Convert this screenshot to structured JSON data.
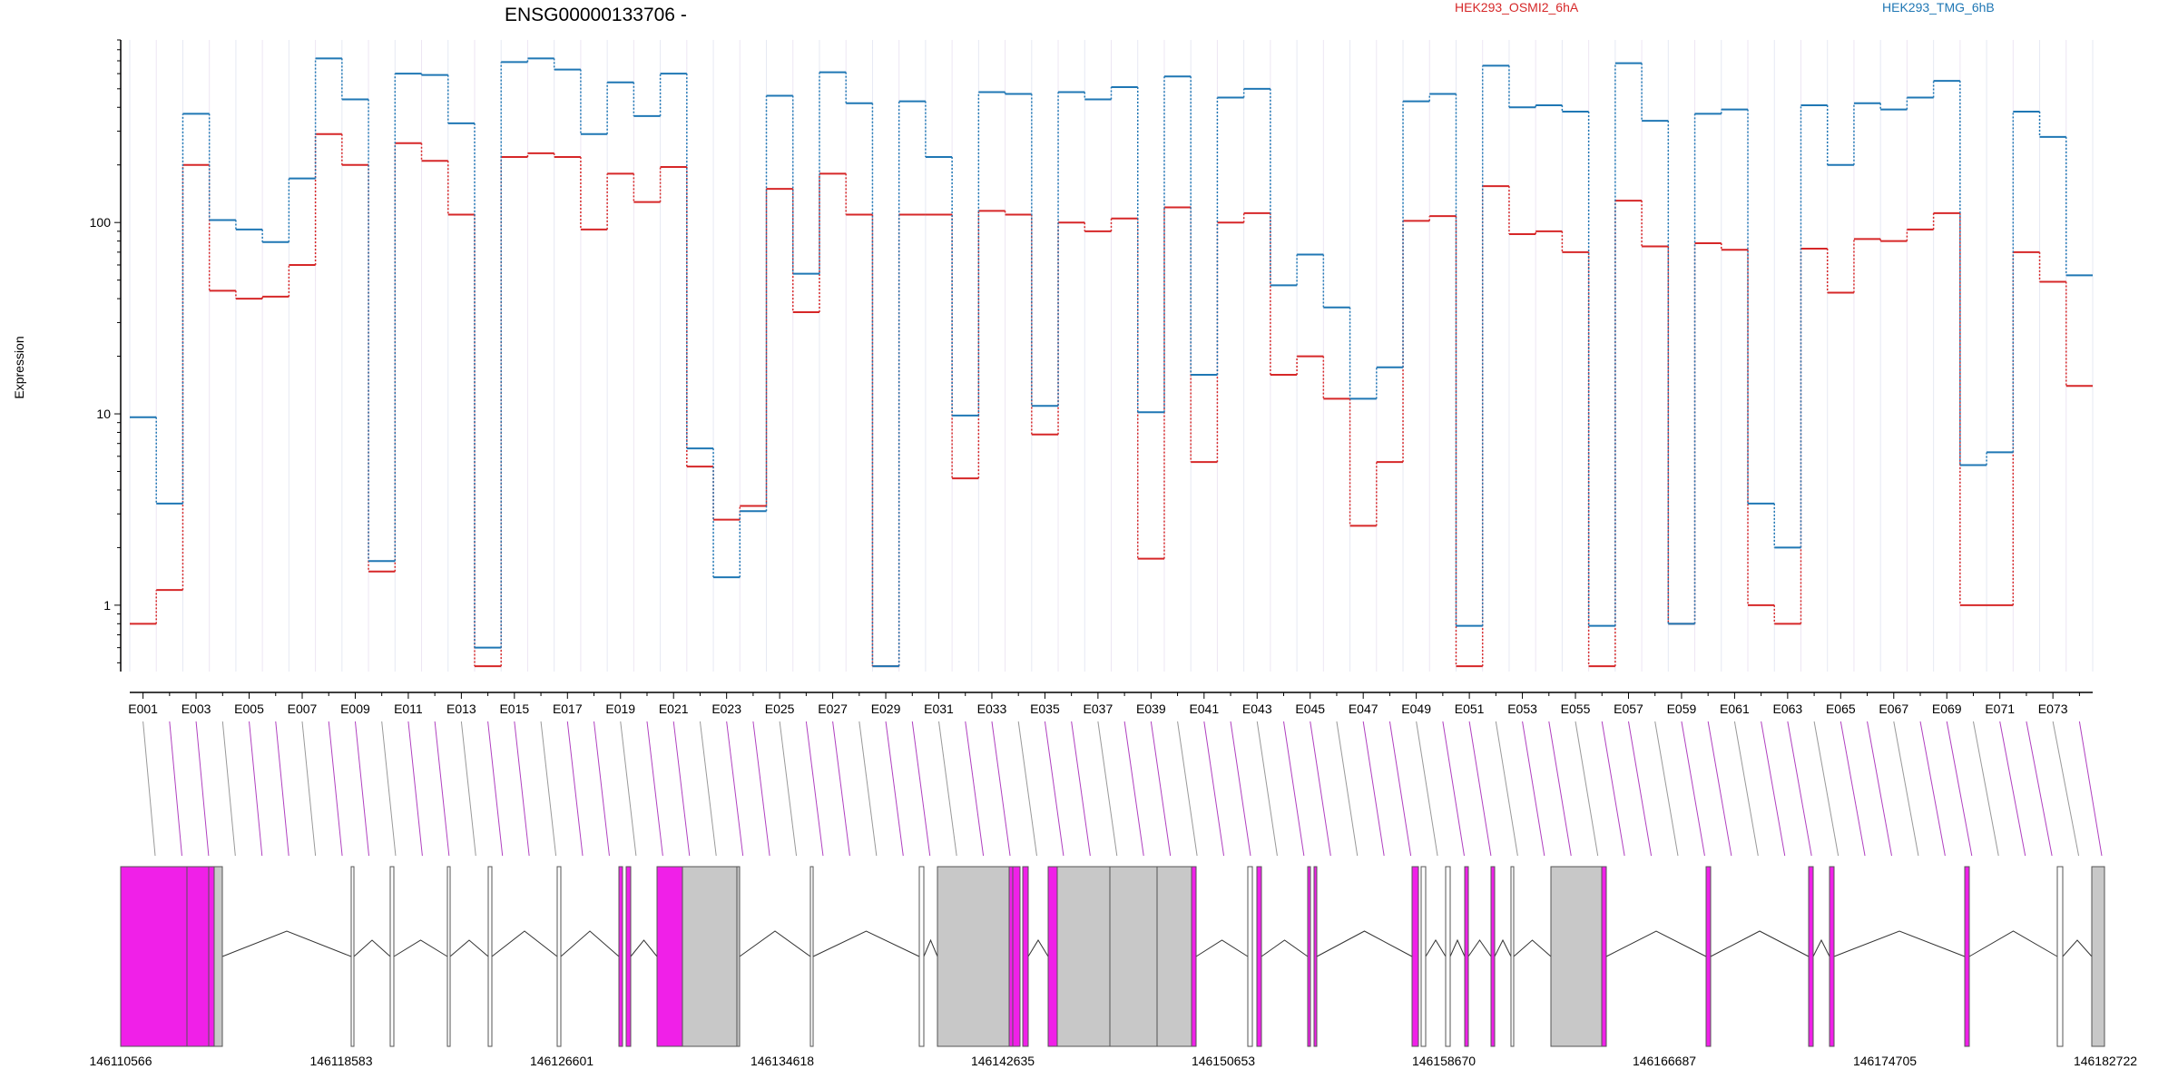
{
  "chart_data": {
    "type": "line",
    "title": "ENSG00000133706 -",
    "ylabel": "Expression",
    "xlabel": "",
    "y_scale": "log",
    "y_ticks": [
      1,
      10,
      100
    ],
    "y_tick_labels": [
      "1",
      "10",
      "100"
    ],
    "ylim": [
      0.45,
      900
    ],
    "grid": "vertical",
    "legend_position": "top-right",
    "colors": {
      "osmi2": "#d62728",
      "tmg": "#1f77b4",
      "exon": "#f020e8",
      "exon_gray": "#c8c8c8",
      "exon_stroke": "#555555",
      "connector_gray": "#999999",
      "connector_magenta": "#b040c0"
    },
    "categories": [
      "E001",
      "E002",
      "E003",
      "E004",
      "E005",
      "E006",
      "E007",
      "E008",
      "E009",
      "E010",
      "E011",
      "E012",
      "E013",
      "E014",
      "E015",
      "E016",
      "E017",
      "E018",
      "E019",
      "E020",
      "E021",
      "E022",
      "E023",
      "E024",
      "E025",
      "E026",
      "E027",
      "E028",
      "E029",
      "E030",
      "E031",
      "E032",
      "E033",
      "E034",
      "E035",
      "E036",
      "E037",
      "E038",
      "E039",
      "E040",
      "E041",
      "E042",
      "E043",
      "E044",
      "E045",
      "E046",
      "E047",
      "E048",
      "E049",
      "E050",
      "E051",
      "E052",
      "E053",
      "E054",
      "E055",
      "E056",
      "E057",
      "E058",
      "E059",
      "E060",
      "E061",
      "E062",
      "E063",
      "E064",
      "E065",
      "E066",
      "E067",
      "E068",
      "E069",
      "E070",
      "E071",
      "E072",
      "E073",
      "E074"
    ],
    "tick_labels": [
      "E001",
      "E003",
      "E005",
      "E007",
      "E009",
      "E011",
      "E013",
      "E015",
      "E017",
      "E019",
      "E021",
      "E023",
      "E025",
      "E027",
      "E029",
      "E031",
      "E033",
      "E035",
      "E037",
      "E039",
      "E041",
      "E043",
      "E045",
      "E047",
      "E049",
      "E051",
      "E053",
      "E055",
      "E057",
      "E059",
      "E061",
      "E063",
      "E065",
      "E067",
      "E069",
      "E071",
      "E073"
    ],
    "series": [
      {
        "name": "HEK293_OSMI2_6hA",
        "values": [
          0.8,
          1.2,
          200,
          44,
          40,
          41,
          60,
          290,
          200,
          1.5,
          260,
          210,
          110,
          0.48,
          220,
          230,
          220,
          92,
          180,
          128,
          195,
          5.3,
          2.8,
          3.3,
          150,
          34,
          180,
          110,
          0.48,
          110,
          110,
          4.6,
          115,
          110,
          7.8,
          100,
          90,
          105,
          1.75,
          120,
          5.6,
          100,
          112,
          16,
          20,
          12,
          2.6,
          5.6,
          102,
          108,
          0.48,
          155,
          87,
          90,
          70,
          0.48,
          130,
          75,
          0.8,
          78,
          72,
          1.0,
          0.8,
          73,
          43,
          82,
          80,
          92,
          112,
          1.0,
          1.0,
          70,
          49,
          14
        ]
      },
      {
        "name": "HEK293_TMG_6hB",
        "values": [
          9.6,
          3.4,
          370,
          103,
          92,
          79,
          170,
          720,
          440,
          1.7,
          600,
          590,
          330,
          0.6,
          690,
          720,
          630,
          290,
          540,
          360,
          600,
          6.6,
          1.4,
          3.1,
          460,
          54,
          610,
          420,
          0.48,
          430,
          220,
          9.8,
          480,
          470,
          11,
          480,
          440,
          510,
          10.2,
          580,
          16,
          450,
          500,
          47,
          68,
          36,
          12,
          17.5,
          430,
          470,
          0.78,
          660,
          400,
          410,
          380,
          0.78,
          680,
          340,
          0.8,
          370,
          390,
          3.4,
          2.0,
          410,
          200,
          420,
          390,
          450,
          550,
          5.4,
          6.3,
          380,
          280,
          53
        ]
      }
    ],
    "genomic_axis": {
      "tick_labels": [
        "146110566",
        "146118583",
        "146126601",
        "146134618",
        "146142635",
        "146150653",
        "146158670",
        "146166687",
        "146174705",
        "146182722"
      ],
      "start": 146110566,
      "end": 146182722
    }
  }
}
